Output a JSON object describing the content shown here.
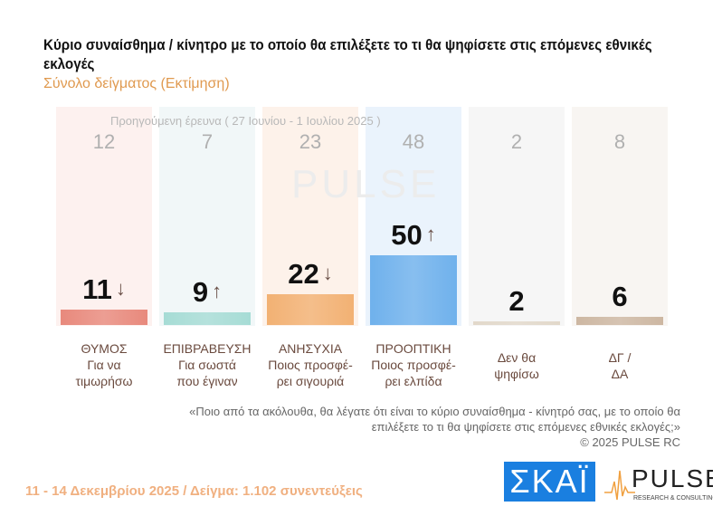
{
  "chart_data": {
    "type": "bar",
    "title": "Κύριο συναίσθημα / κίνητρο με το οποίο θα επιλέξετε το τι θα ψηφίσετε στις επόμενες εθνικές εκλογές",
    "subtitle": "Σύνολο δείγματος  (Εκτίμηση)",
    "previous_note": "Προηγούμενη έρευνα ( 27 Ιουνίου - 1 Ιουλίου 2025 )",
    "categories": [
      {
        "line1": "ΘΥΜΟΣ",
        "line2": "Για να",
        "line3": "τιμωρήσω"
      },
      {
        "line1": "ΕΠΙΒΡΑΒΕΥΣΗ",
        "line2": "Για σωστά",
        "line3": "που έγιναν"
      },
      {
        "line1": "ΑΝΗΣΥΧΙΑ",
        "line2": "Ποιος προσφέ-",
        "line3": "ρει σιγουριά"
      },
      {
        "line1": "ΠΡΟΟΠΤΙΚΗ",
        "line2": "Ποιος προσφέ-",
        "line3": "ρει ελπίδα"
      },
      {
        "line1": "",
        "line2": "Δεν θα",
        "line3": "ψηφίσω"
      },
      {
        "line1": "",
        "line2": "ΔΓ /",
        "line3": "ΔΑ"
      }
    ],
    "values": [
      11,
      9,
      22,
      50,
      2,
      6
    ],
    "previous_values": [
      12,
      7,
      23,
      48,
      2,
      8
    ],
    "trend_arrows": [
      "↓",
      "↑",
      "↓",
      "↑",
      "",
      ""
    ],
    "colors": [
      "#e8897c",
      "#a6dcd5",
      "#f2b173",
      "#6fb1ec",
      "#e2d8ca",
      "#cdb7a2"
    ],
    "bg_colors": [
      "#fdf1ef",
      "#f1f7f8",
      "#fdf2ea",
      "#eaf3fc",
      "#f6f6f6",
      "#f8f5f2"
    ],
    "ylim": [
      0,
      60
    ]
  },
  "watermark": "PULSE",
  "question": "«Ποιο από τα ακόλουθα, θα λέγατε ότι είναι το κύριο συναίσθημα - κίνητρό σας, με το οποίο θα επιλέξετε το τι θα ψηφίσετε στις επόμενες εθνικές εκλογές;»",
  "copyright": "©  2025  PULSE RC",
  "footer": "11 - 14 Δεκεμβρίου 2025  /  Δείγμα:  1.102 συνεντεύξεις",
  "logos": {
    "skai": "ΣΚΑΪ",
    "pulse": "PULSE",
    "pulse_sub": "RESEARCH & CONSULTING"
  }
}
